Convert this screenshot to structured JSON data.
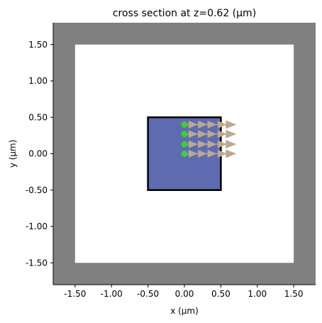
{
  "chart_data": {
    "type": "scatter",
    "title": "cross section at z=0.62 (μm)",
    "xlabel": "x (μm)",
    "ylabel": "y (μm)",
    "xlim": [
      -1.8,
      1.8
    ],
    "ylim": [
      -1.8,
      1.8
    ],
    "xticks": [
      -1.5,
      -1.0,
      -0.5,
      0.0,
      0.5,
      1.0,
      1.5
    ],
    "yticks": [
      -1.5,
      -1.0,
      -0.5,
      0.0,
      0.5,
      1.0,
      1.5
    ],
    "xtick_labels": [
      "-1.50",
      "-1.00",
      "-0.50",
      "0.00",
      "0.50",
      "1.00",
      "1.50"
    ],
    "ytick_labels": [
      "-1.50",
      "-1.00",
      "-0.50",
      "0.00",
      "0.50",
      "1.00",
      "1.50"
    ],
    "grid": false,
    "simulation_region": {
      "xmin": -1.5,
      "xmax": 1.5,
      "ymin": -1.5,
      "ymax": 1.5,
      "pml_color": "#808080",
      "interior_color": "#ffffff"
    },
    "structure": {
      "xmin": -0.5,
      "xmax": 0.5,
      "ymin": -0.5,
      "ymax": 0.5,
      "fill": "#5e6caf",
      "edge": "#000000"
    },
    "sources": {
      "color": "#3dcc3d",
      "arrow_color": "#bca892",
      "direction": "+x",
      "points": [
        {
          "x": 0.0,
          "y": 0.4
        },
        {
          "x": 0.0,
          "y": 0.27
        },
        {
          "x": 0.0,
          "y": 0.13
        },
        {
          "x": 0.0,
          "y": 0.0
        }
      ]
    }
  }
}
